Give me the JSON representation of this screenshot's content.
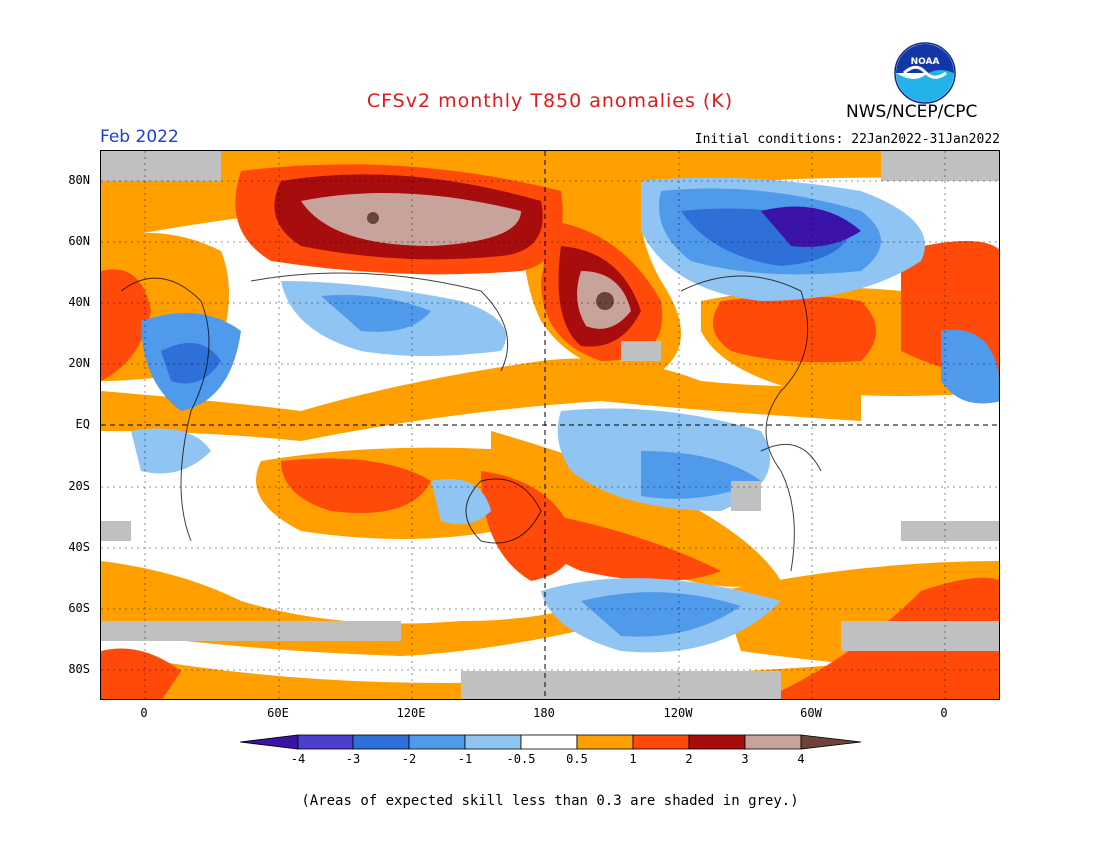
{
  "header": {
    "title": "CFSv2 monthly T850 anomalies (K)",
    "agency": "NWS/NCEP/CPC",
    "month": "Feb 2022",
    "initial_conditions": "Initial conditions: 22Jan2022-31Jan2022",
    "logo_text": "NOAA"
  },
  "axes": {
    "lat_labels": [
      "80N",
      "60N",
      "40N",
      "20N",
      "EQ",
      "20S",
      "40S",
      "60S",
      "80S"
    ],
    "lon_labels": [
      "0",
      "60E",
      "120E",
      "180",
      "120W",
      "60W",
      "0"
    ]
  },
  "colorbar": {
    "labels": [
      "-4",
      "-3",
      "-2",
      "-1",
      "-0.5",
      "0.5",
      "1",
      "2",
      "3",
      "4"
    ],
    "colors": [
      "#3b13a8",
      "#4c3fcf",
      "#2f6fd8",
      "#4f9aea",
      "#8fc4f3",
      "#ffffff",
      "#ff9f00",
      "#ff4a0a",
      "#a80d0d",
      "#c8a39c",
      "#6b4338"
    ]
  },
  "footnote": "(Areas of expected skill less than 0.3 are shaded in grey.)",
  "colors": {
    "title": "#e21a1a",
    "month": "#1b3fd6",
    "grey_skill": "#c0c0c0"
  }
}
